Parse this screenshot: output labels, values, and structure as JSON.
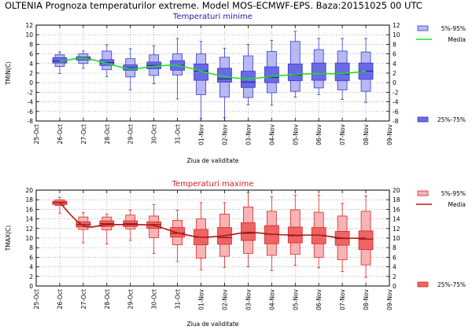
{
  "page": {
    "title": "OLTENIA  Prognoza temperaturilor extreme.  Model MOS-ECMWF-EPS. Baza:20151025 00 UTC"
  },
  "chart_data": [
    {
      "type": "box",
      "title": "Temperaturi minime",
      "ylabel": "TMIN(C)",
      "xlabel": "Ziua de validitate",
      "ylim": [
        -8,
        12
      ],
      "yticks": [
        -8,
        -6,
        -4,
        -2,
        0,
        2,
        4,
        6,
        8,
        10,
        12
      ],
      "categories": [
        "25-Oct",
        "26-Oct",
        "27-Oct",
        "28-Oct",
        "29-Oct",
        "30-Oct",
        "31-Oct",
        "01-Nov",
        "02-Nov",
        "03-Nov",
        "04-Nov",
        "05-Nov",
        "06-Nov",
        "07-Nov",
        "08-Nov",
        "09-Nov"
      ],
      "title_color": "#2020c0",
      "legend": [
        {
          "label": "5%-95%",
          "kind": "box-light"
        },
        {
          "label": "Media",
          "kind": "line"
        },
        {
          "label": "25%-75%",
          "kind": "box-dark"
        }
      ],
      "colors": {
        "light": "#b8b8f4",
        "dark": "#6a6ae6",
        "edge": "#3a3ac8",
        "line": "#22dd22",
        "median": "#1a1a80"
      },
      "boxes": [
        {
          "x": "26-Oct",
          "p5": 3.4,
          "p25": 4.1,
          "median": 4.5,
          "p75": 5.2,
          "p95": 5.8,
          "min": 1.9,
          "max": 6.4
        },
        {
          "x": "27-Oct",
          "p5": 4.0,
          "p25": 4.7,
          "median": 5.1,
          "p75": 5.4,
          "p95": 6.0,
          "min": 3.0,
          "max": 6.6
        },
        {
          "x": "28-Oct",
          "p5": 2.7,
          "p25": 3.6,
          "median": 4.2,
          "p75": 4.8,
          "p95": 6.6,
          "min": 1.3,
          "max": 7.9
        },
        {
          "x": "29-Oct",
          "p5": 1.2,
          "p25": 2.6,
          "median": 3.1,
          "p75": 3.7,
          "p95": 5.0,
          "min": -1.5,
          "max": 7.1
        },
        {
          "x": "30-Oct",
          "p5": 1.5,
          "p25": 2.9,
          "median": 3.6,
          "p75": 4.3,
          "p95": 5.8,
          "min": -0.2,
          "max": 7.7
        },
        {
          "x": "31-Oct",
          "p5": 1.6,
          "p25": 2.6,
          "median": 3.6,
          "p75": 4.6,
          "p95": 6.0,
          "min": -3.4,
          "max": 9.2
        },
        {
          "x": "01-Nov",
          "p5": -2.5,
          "p25": 0.5,
          "median": 2.4,
          "p75": 3.9,
          "p95": 6.0,
          "min": -7.5,
          "max": 8.6
        },
        {
          "x": "02-Nov",
          "p5": -3.0,
          "p25": 0.1,
          "median": 0.8,
          "p75": 3.0,
          "p95": 5.3,
          "min": -7.3,
          "max": 7.2
        },
        {
          "x": "03-Nov",
          "p5": -3.1,
          "p25": -1.0,
          "median": 0.1,
          "p75": 2.4,
          "p95": 5.6,
          "min": -4.6,
          "max": 8.0
        },
        {
          "x": "04-Nov",
          "p5": -2.1,
          "p25": 0.0,
          "median": 1.1,
          "p75": 3.3,
          "p95": 6.5,
          "min": -4.7,
          "max": 8.8
        },
        {
          "x": "05-Nov",
          "p5": -1.8,
          "p25": 0.4,
          "median": 1.6,
          "p75": 3.9,
          "p95": 8.6,
          "min": -3.0,
          "max": 10.7
        },
        {
          "x": "06-Nov",
          "p5": -1.1,
          "p25": 0.5,
          "median": 1.9,
          "p75": 4.1,
          "p95": 6.9,
          "min": -2.5,
          "max": 9.2
        },
        {
          "x": "07-Nov",
          "p5": -1.5,
          "p25": 0.4,
          "median": 1.8,
          "p75": 4.1,
          "p95": 6.6,
          "min": -3.5,
          "max": 9.2
        },
        {
          "x": "08-Nov",
          "p5": -1.8,
          "p25": 0.7,
          "median": 2.4,
          "p75": 4.1,
          "p95": 6.4,
          "min": -4.1,
          "max": 9.2
        }
      ],
      "mean_line": {
        "name": "Media",
        "x": [
          "26-Oct",
          "27-Oct",
          "28-Oct",
          "29-Oct",
          "30-Oct",
          "31-Oct",
          "01-Nov",
          "02-Nov",
          "03-Nov",
          "04-Nov",
          "05-Nov",
          "06-Nov",
          "07-Nov",
          "08-Nov"
        ],
        "y": [
          4.4,
          5.1,
          4.0,
          2.9,
          3.4,
          3.6,
          2.4,
          1.3,
          0.8,
          1.3,
          1.7,
          1.9,
          1.9,
          2.4
        ]
      }
    },
    {
      "type": "box",
      "title": "Temperaturi maxime",
      "ylabel": "TMAX(C)",
      "xlabel": "Ziua de validitate",
      "ylim": [
        0,
        20
      ],
      "yticks": [
        0,
        2,
        4,
        6,
        8,
        10,
        12,
        14,
        16,
        18,
        20
      ],
      "categories": [
        "25-Oct",
        "26-Oct",
        "27-Oct",
        "28-Oct",
        "29-Oct",
        "30-Oct",
        "31-Oct",
        "01-Nov",
        "02-Nov",
        "03-Nov",
        "04-Nov",
        "05-Nov",
        "06-Nov",
        "07-Nov",
        "08-Nov",
        "09-Nov"
      ],
      "title_color": "#d02020",
      "legend": [
        {
          "label": "5%-95%",
          "kind": "box-light"
        },
        {
          "label": "Media",
          "kind": "line"
        },
        {
          "label": "25%-75%",
          "kind": "box-dark"
        }
      ],
      "colors": {
        "light": "#f8b4b4",
        "dark": "#ec6464",
        "edge": "#d82828",
        "line": "#b01818",
        "median": "#800000"
      },
      "boxes": [
        {
          "x": "26-Oct",
          "p5": 16.8,
          "p25": 17.0,
          "median": 17.4,
          "p75": 17.7,
          "p95": 18.0,
          "min": 15.2,
          "max": 18.5
        },
        {
          "x": "27-Oct",
          "p5": 11.8,
          "p25": 12.3,
          "median": 12.8,
          "p75": 13.4,
          "p95": 14.4,
          "min": 9.0,
          "max": 15.3
        },
        {
          "x": "28-Oct",
          "p5": 11.7,
          "p25": 12.4,
          "median": 13.0,
          "p75": 13.6,
          "p95": 14.4,
          "min": 8.8,
          "max": 15.0
        },
        {
          "x": "29-Oct",
          "p5": 11.9,
          "p25": 12.4,
          "median": 13.0,
          "p75": 13.6,
          "p95": 14.8,
          "min": 9.5,
          "max": 15.8
        },
        {
          "x": "30-Oct",
          "p5": 10.1,
          "p25": 12.0,
          "median": 12.8,
          "p75": 13.4,
          "p95": 14.6,
          "min": 6.8,
          "max": 17.0
        },
        {
          "x": "31-Oct",
          "p5": 8.6,
          "p25": 10.2,
          "median": 11.0,
          "p75": 12.2,
          "p95": 13.7,
          "min": 5.1,
          "max": 15.8
        },
        {
          "x": "01-Nov",
          "p5": 5.8,
          "p25": 8.6,
          "median": 10.2,
          "p75": 11.8,
          "p95": 14.0,
          "min": 3.4,
          "max": 17.4
        },
        {
          "x": "02-Nov",
          "p5": 6.2,
          "p25": 8.7,
          "median": 10.1,
          "p75": 12.2,
          "p95": 15.0,
          "min": 3.9,
          "max": 17.4
        },
        {
          "x": "03-Nov",
          "p5": 6.8,
          "p25": 9.5,
          "median": 11.0,
          "p75": 13.2,
          "p95": 16.5,
          "min": 4.0,
          "max": 19.5
        },
        {
          "x": "04-Nov",
          "p5": 6.4,
          "p25": 8.8,
          "median": 10.8,
          "p75": 12.6,
          "p95": 15.6,
          "min": 3.2,
          "max": 18.6
        },
        {
          "x": "05-Nov",
          "p5": 6.6,
          "p25": 9.0,
          "median": 10.5,
          "p75": 12.3,
          "p95": 15.9,
          "min": 4.3,
          "max": 19.0
        },
        {
          "x": "06-Nov",
          "p5": 6.0,
          "p25": 8.8,
          "median": 10.6,
          "p75": 12.2,
          "p95": 15.4,
          "min": 3.8,
          "max": 19.0
        },
        {
          "x": "07-Nov",
          "p5": 5.5,
          "p25": 8.5,
          "median": 9.9,
          "p75": 11.4,
          "p95": 14.6,
          "min": 3.0,
          "max": 17.2
        },
        {
          "x": "08-Nov",
          "p5": 4.4,
          "p25": 7.6,
          "median": 9.8,
          "p75": 11.5,
          "p95": 15.6,
          "min": 1.8,
          "max": 18.8
        }
      ],
      "mean_line": {
        "name": "Media",
        "x": [
          "26-Oct",
          "27-Oct",
          "28-Oct",
          "29-Oct",
          "30-Oct",
          "31-Oct",
          "01-Nov",
          "02-Nov",
          "03-Nov",
          "04-Nov",
          "05-Nov",
          "06-Nov",
          "07-Nov",
          "08-Nov"
        ],
        "y": [
          17.4,
          12.6,
          12.8,
          12.8,
          12.6,
          11.1,
          10.2,
          10.5,
          11.2,
          10.8,
          10.6,
          10.6,
          10.0,
          10.0
        ]
      }
    }
  ]
}
